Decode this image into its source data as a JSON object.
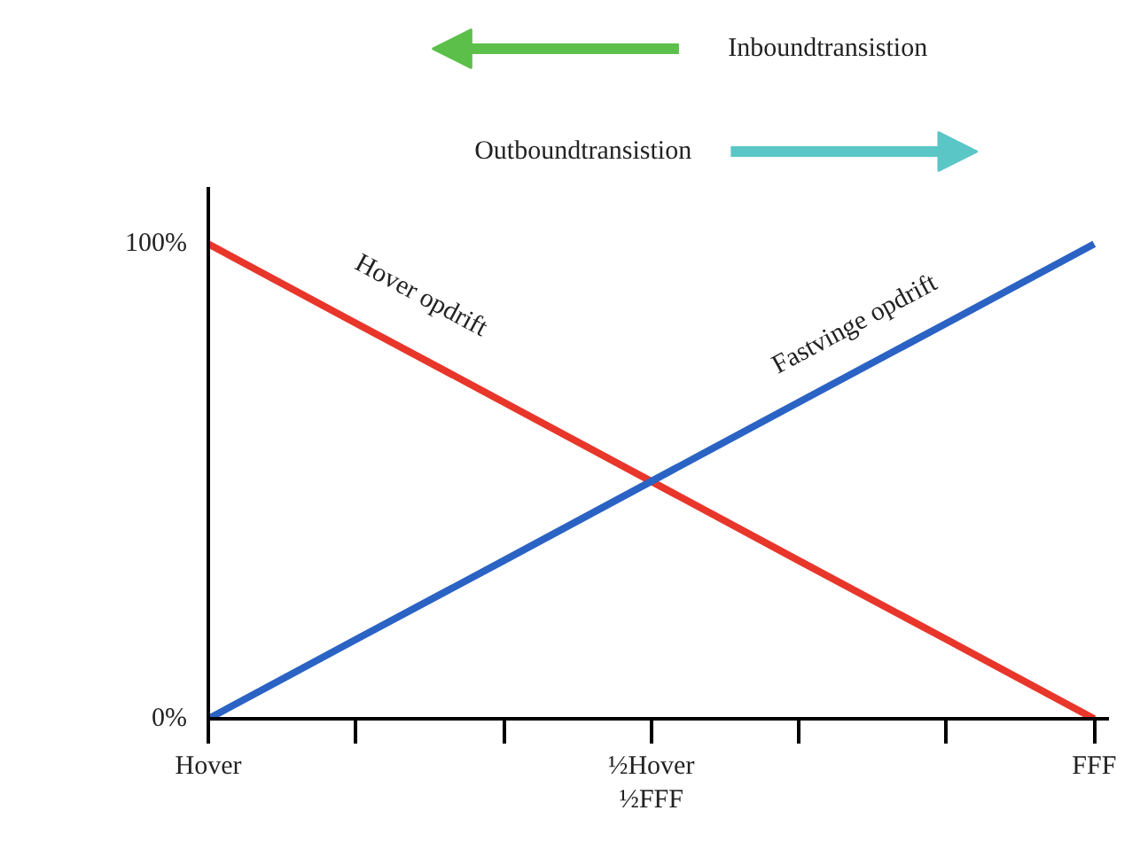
{
  "chart_data": {
    "type": "line",
    "categories": [
      "Hover",
      null,
      null,
      "½Hover\n½FFF",
      null,
      null,
      "FFF"
    ],
    "series": [
      {
        "name": "Hover opdrift",
        "color": "#e8362b",
        "values": [
          100,
          83.3,
          66.7,
          50,
          33.3,
          16.7,
          0
        ]
      },
      {
        "name": "Fastvinge opdrift",
        "color": "#2b63c4",
        "values": [
          0,
          16.7,
          33.3,
          50,
          66.7,
          83.3,
          100
        ]
      }
    ],
    "ylim": [
      0,
      112
    ],
    "yticks": [
      {
        "value": 0,
        "label": "0%"
      },
      {
        "value": 100,
        "label": "100%"
      }
    ],
    "annotations": [
      "Inboundtransistion",
      "Outboundtransistion"
    ],
    "grid": false,
    "marker": "none",
    "line_style": "solid"
  }
}
